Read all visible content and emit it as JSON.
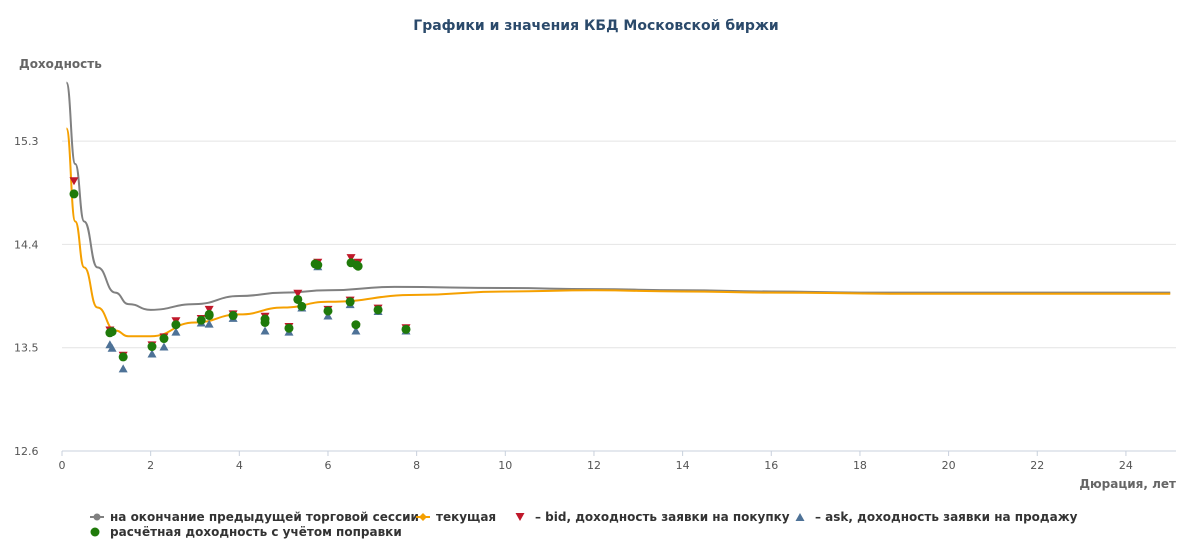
{
  "chart_data": {
    "type": "scatter",
    "title": "Графики и значения КБД Московской биржи",
    "ylabel": "Доходность",
    "xlabel": "Дюрация, лет",
    "xlim": [
      0,
      25.2
    ],
    "ylim": [
      12.6,
      15.9
    ],
    "xticks": [
      0,
      2,
      4,
      6,
      8,
      10,
      12,
      14,
      16,
      18,
      20,
      22,
      24
    ],
    "yticks": [
      12.6,
      13.5,
      14.4,
      15.3
    ],
    "grid": "horizontal",
    "legend_placement": "bottom",
    "series": [
      {
        "name": "на окончание предыдущей торговой сессии",
        "kind": "line",
        "color": "#808080",
        "x": [
          0.1,
          0.3,
          0.5,
          0.8,
          1.2,
          1.5,
          2,
          3,
          4,
          5,
          6,
          7.5,
          10,
          12,
          14,
          16,
          18,
          20,
          25
        ],
        "y": [
          15.81,
          15.1,
          14.6,
          14.2,
          13.98,
          13.88,
          13.83,
          13.88,
          13.95,
          13.98,
          14.0,
          14.03,
          14.02,
          14.01,
          14.0,
          13.99,
          13.98,
          13.98,
          13.98
        ]
      },
      {
        "name": "текущая",
        "kind": "line",
        "color": "#f5a000",
        "x": [
          0.1,
          0.3,
          0.5,
          0.8,
          1.2,
          1.5,
          2,
          3,
          4,
          5,
          6,
          8,
          10,
          12,
          14,
          16,
          19,
          25
        ],
        "y": [
          15.41,
          14.6,
          14.2,
          13.85,
          13.65,
          13.6,
          13.6,
          13.72,
          13.79,
          13.85,
          13.9,
          13.96,
          13.99,
          14.0,
          13.99,
          13.98,
          13.97,
          13.97
        ]
      },
      {
        "name": "– bid, доходность заявки на покупку",
        "kind": "marker",
        "marker": "triangle-down",
        "color": "#c0182a",
        "x": [
          0.27,
          1.08,
          1.38,
          2.03,
          2.57,
          3.32,
          5.32,
          5.77,
          6.52,
          6.68,
          2.3,
          3.14,
          3.86,
          4.58,
          5.12,
          6.0,
          6.5,
          6.63,
          7.13,
          7.76
        ],
        "y": [
          14.95,
          13.65,
          13.43,
          13.52,
          13.73,
          13.83,
          13.97,
          14.24,
          14.28,
          14.24,
          13.59,
          13.75,
          13.79,
          13.77,
          13.68,
          13.83,
          13.91,
          13.68,
          13.84,
          13.67
        ]
      },
      {
        "name": "– ask, доходность заявки на продажу",
        "kind": "marker",
        "marker": "triangle-up",
        "color": "#4e7297",
        "x": [
          1.08,
          1.13,
          1.38,
          2.03,
          2.3,
          2.57,
          3.14,
          3.32,
          3.86,
          4.58,
          5.12,
          5.41,
          6.0,
          6.63,
          7.13,
          7.76,
          5.77,
          6.5
        ],
        "y": [
          13.53,
          13.5,
          13.32,
          13.45,
          13.51,
          13.64,
          13.72,
          13.71,
          13.76,
          13.65,
          13.64,
          13.85,
          13.78,
          13.65,
          13.82,
          13.65,
          14.21,
          13.88
        ]
      },
      {
        "name": "расчётная доходность с учётом поправки",
        "kind": "marker",
        "marker": "circle",
        "color": "#1f7a0a",
        "x": [
          0.27,
          1.08,
          1.13,
          1.38,
          2.03,
          2.3,
          2.57,
          3.14,
          3.32,
          3.32,
          3.86,
          4.58,
          4.58,
          5.12,
          5.32,
          5.41,
          5.71,
          5.77,
          6.0,
          6.5,
          6.52,
          6.63,
          6.65,
          6.68,
          7.13,
          7.76
        ],
        "y": [
          14.84,
          13.63,
          13.64,
          13.42,
          13.51,
          13.58,
          13.7,
          13.74,
          13.78,
          13.79,
          13.78,
          13.72,
          13.75,
          13.67,
          13.92,
          13.86,
          14.23,
          14.22,
          13.82,
          13.9,
          14.24,
          13.7,
          14.22,
          14.21,
          13.83,
          13.66
        ]
      }
    ]
  }
}
